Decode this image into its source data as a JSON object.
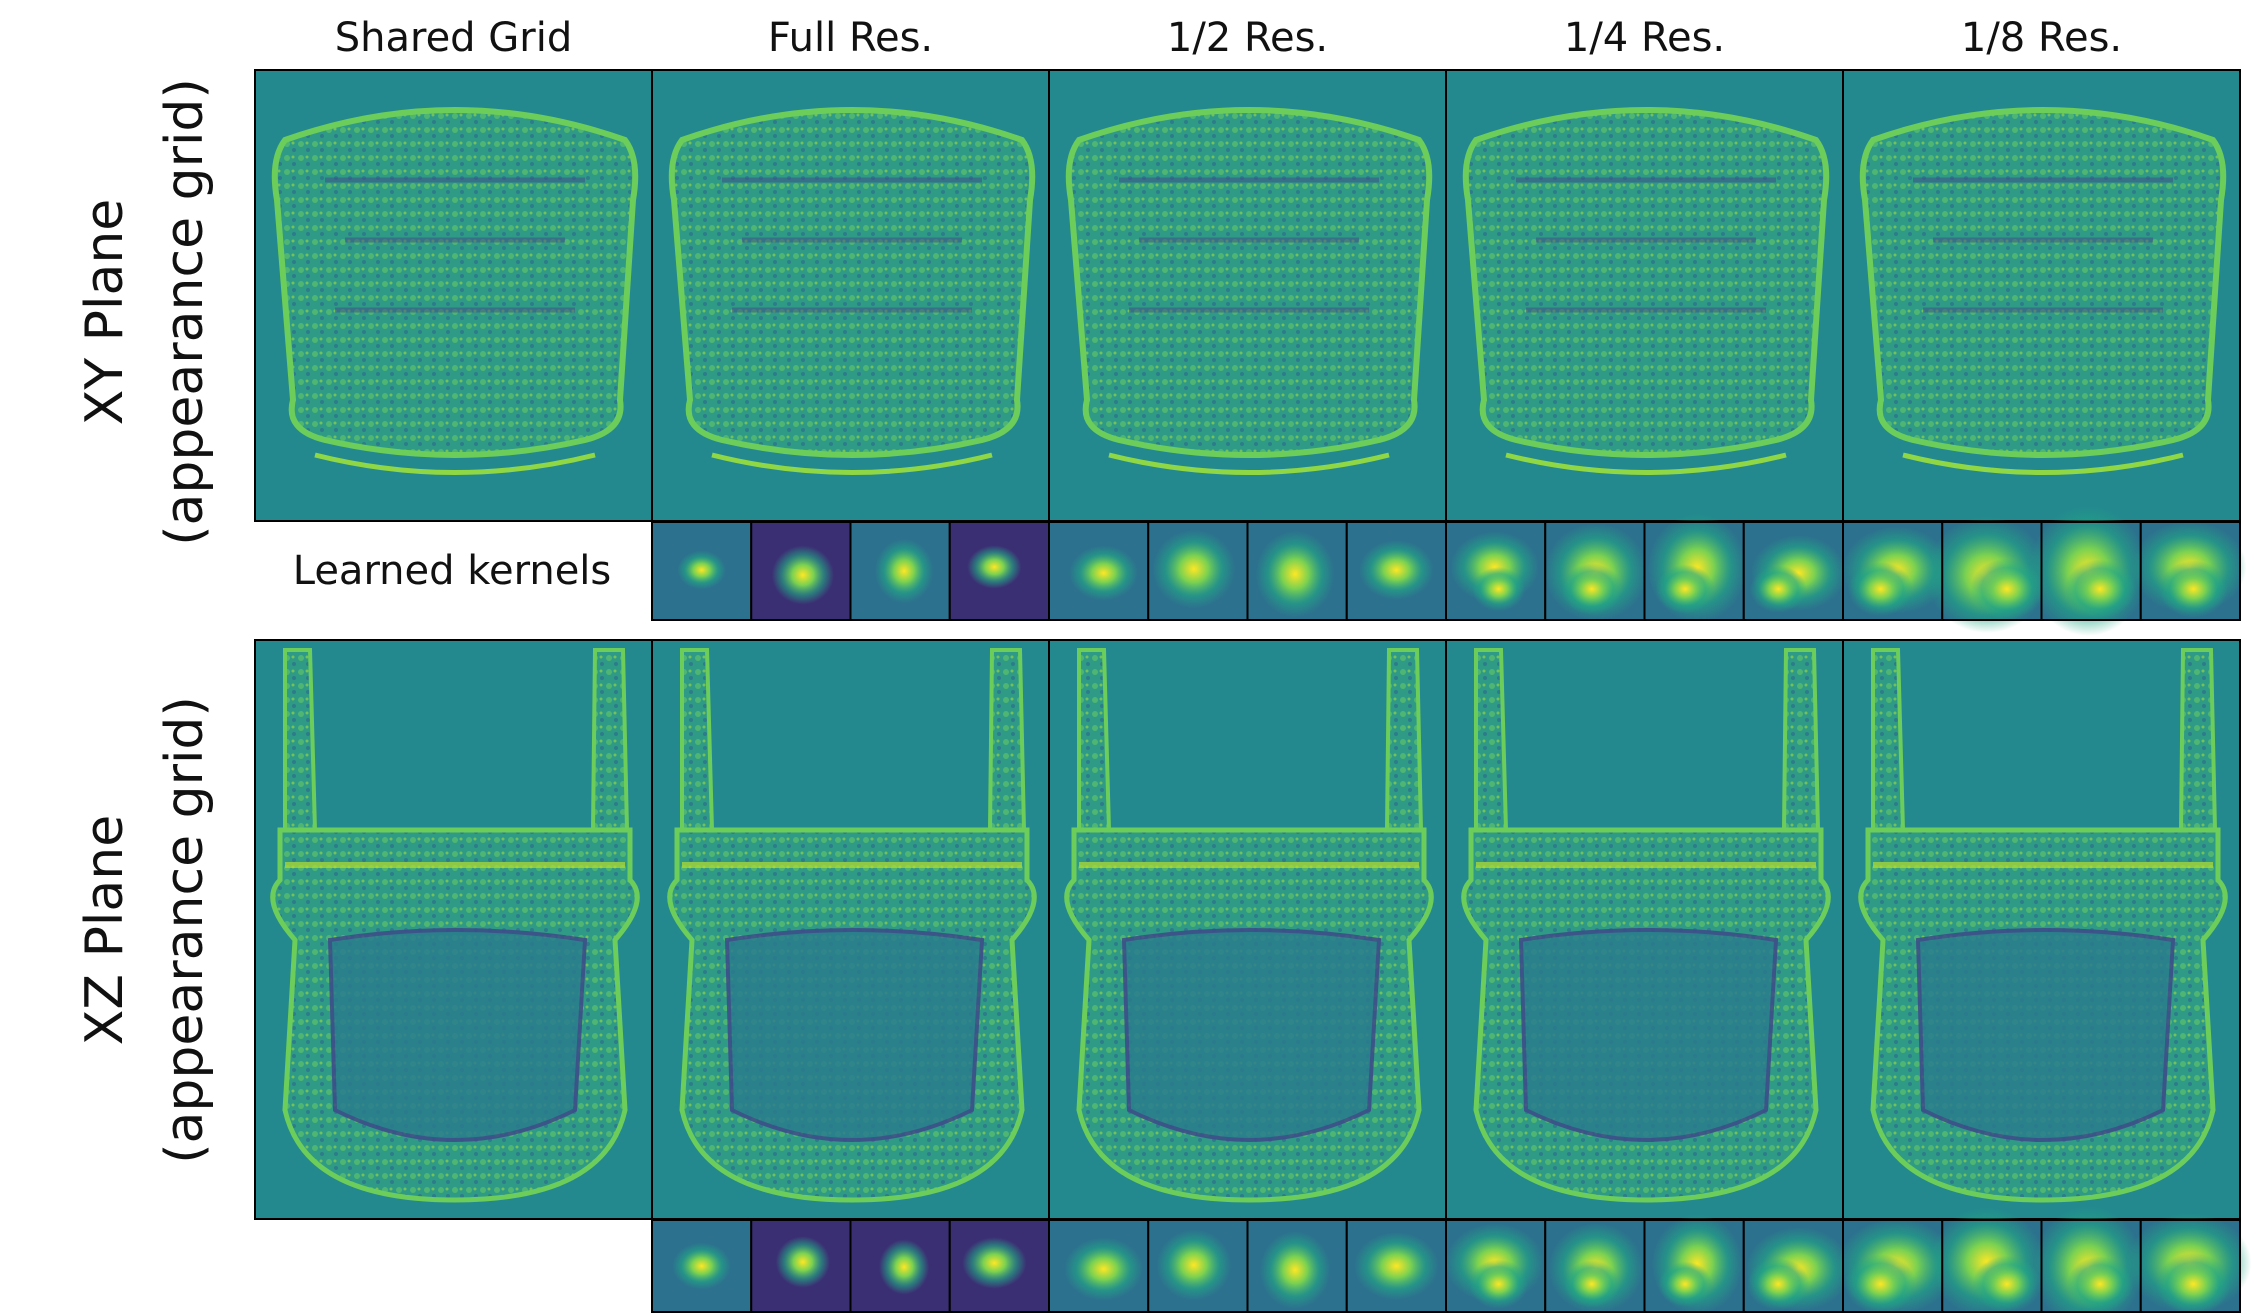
{
  "columns": [
    "Shared Grid",
    "Full Res.",
    "1/2 Res.",
    "1/4 Res.",
    "1/8 Res."
  ],
  "rows": [
    {
      "label": "XY Plane",
      "sublabel": "(appearance grid)"
    },
    {
      "label": "XZ Plane",
      "sublabel": "(appearance grid)"
    }
  ],
  "kernels_label": "Learned kernels"
}
